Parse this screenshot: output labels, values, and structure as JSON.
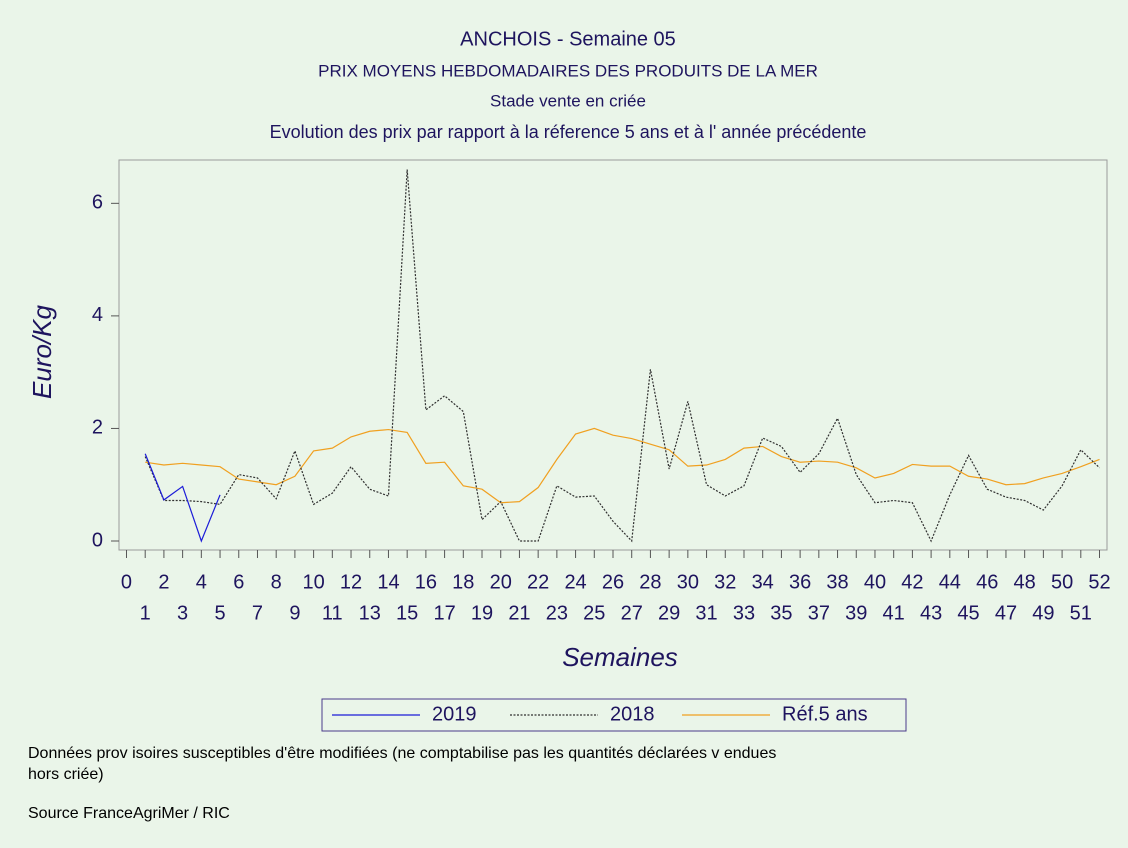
{
  "chart_data": {
    "type": "line",
    "title": "ANCHOIS - Semaine 05",
    "subtitles": [
      "PRIX MOYENS HEBDOMADAIRES DES PRODUITS DE LA MER",
      "Stade vente en criée",
      "Evolution des prix par rapport à la réference 5 ans et à l' année précédente"
    ],
    "y_label": "Euro/Kg",
    "x_label": "Semaines",
    "xlim": [
      -0.4,
      52.4
    ],
    "ylim": [
      -0.16,
      6.77
    ],
    "xticks": [
      0,
      1,
      2,
      3,
      4,
      5,
      6,
      7,
      8,
      9,
      10,
      11,
      12,
      13,
      14,
      15,
      16,
      17,
      18,
      19,
      20,
      21,
      22,
      23,
      24,
      25,
      26,
      27,
      28,
      29,
      30,
      31,
      32,
      33,
      34,
      35,
      36,
      37,
      38,
      39,
      40,
      41,
      42,
      43,
      44,
      45,
      46,
      47,
      48,
      49,
      50,
      51,
      52
    ],
    "yticks": [
      0,
      2,
      4,
      6
    ],
    "series": [
      {
        "name": "2019",
        "color": "#1c1cd8",
        "dash": "none",
        "x": [
          1,
          2,
          3,
          4,
          5
        ],
        "values": [
          1.55,
          0.73,
          0.97,
          0.0,
          0.82
        ]
      },
      {
        "name": "2018",
        "color": "#303030",
        "dash": "2,1.5",
        "x": [
          1,
          2,
          3,
          4,
          5,
          6,
          7,
          8,
          9,
          10,
          11,
          12,
          13,
          14,
          15,
          16,
          17,
          18,
          19,
          20,
          21,
          22,
          23,
          24,
          25,
          26,
          27,
          28,
          29,
          30,
          31,
          32,
          33,
          34,
          35,
          36,
          37,
          38,
          39,
          40,
          41,
          42,
          43,
          44,
          45,
          46,
          47,
          48,
          49,
          50,
          51,
          52
        ],
        "values": [
          1.5,
          0.72,
          0.72,
          0.7,
          0.65,
          1.18,
          1.12,
          0.75,
          1.6,
          0.65,
          0.85,
          1.32,
          0.92,
          0.8,
          6.6,
          2.33,
          2.58,
          2.3,
          0.38,
          0.7,
          0.0,
          0.0,
          0.98,
          0.78,
          0.8,
          0.35,
          0.0,
          3.05,
          1.28,
          2.48,
          1.0,
          0.8,
          0.98,
          1.83,
          1.68,
          1.22,
          1.55,
          2.18,
          1.18,
          0.68,
          0.72,
          0.68,
          0.0,
          0.82,
          1.52,
          0.92,
          0.78,
          0.72,
          0.55,
          0.98,
          1.62,
          1.3
        ]
      },
      {
        "name": "Réf.5 ans",
        "color": "#f0a020",
        "dash": "none",
        "x": [
          1,
          2,
          3,
          4,
          5,
          6,
          7,
          8,
          9,
          10,
          11,
          12,
          13,
          14,
          15,
          16,
          17,
          18,
          19,
          20,
          21,
          22,
          23,
          24,
          25,
          26,
          27,
          28,
          29,
          30,
          31,
          32,
          33,
          34,
          35,
          36,
          37,
          38,
          39,
          40,
          41,
          42,
          43,
          44,
          45,
          46,
          47,
          48,
          49,
          50,
          51,
          52
        ],
        "values": [
          1.4,
          1.35,
          1.38,
          1.35,
          1.32,
          1.1,
          1.05,
          1.0,
          1.15,
          1.6,
          1.65,
          1.85,
          1.95,
          1.98,
          1.93,
          1.38,
          1.4,
          0.98,
          0.92,
          0.68,
          0.7,
          0.95,
          1.45,
          1.9,
          2.0,
          1.88,
          1.82,
          1.72,
          1.62,
          1.33,
          1.35,
          1.45,
          1.65,
          1.68,
          1.5,
          1.4,
          1.42,
          1.4,
          1.3,
          1.12,
          1.2,
          1.36,
          1.33,
          1.33,
          1.15,
          1.1,
          1.0,
          1.02,
          1.12,
          1.2,
          1.32,
          1.45
        ]
      }
    ],
    "notes": [
      "Données prov isoires susceptibles d'être modifiées (ne comptabilise pas les quantités déclarées v endues",
      "hors criée)",
      "Source FranceAgriMer / RIC"
    ]
  }
}
